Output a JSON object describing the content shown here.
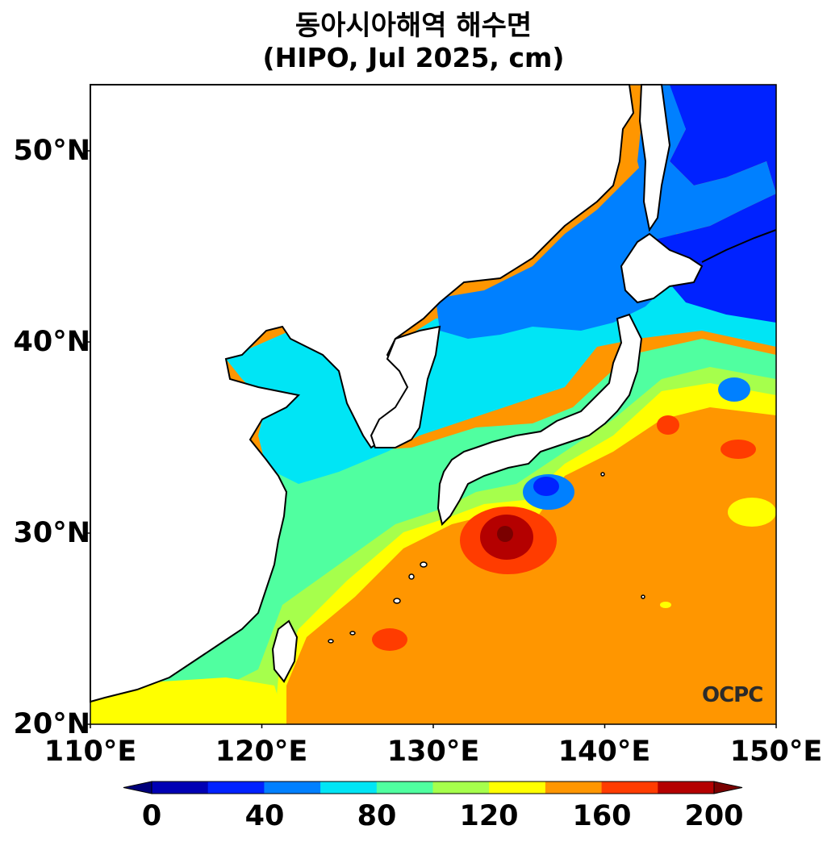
{
  "title": {
    "line1": "동아시아해역 해수면",
    "line2": "(HIPO, Jul 2025, cm)"
  },
  "map": {
    "lon_range": [
      110,
      150
    ],
    "lat_range": [
      20,
      53.5
    ],
    "x_ticks": [
      "110°E",
      "120°E",
      "130°E",
      "140°E",
      "150°E"
    ],
    "y_ticks": [
      "20°N",
      "30°N",
      "40°N",
      "50°N"
    ],
    "variable": "sea surface height",
    "units": "cm"
  },
  "colorbar": {
    "levels": [
      0,
      20,
      40,
      60,
      80,
      100,
      120,
      140,
      160,
      180,
      200
    ],
    "colors": [
      "#0000b4",
      "#0022ff",
      "#0080ff",
      "#00e5f5",
      "#50ffa0",
      "#a6ff4c",
      "#ffff00",
      "#ff9600",
      "#ff3c00",
      "#b40000"
    ],
    "under_color": "#00007a",
    "over_color": "#7a0000",
    "tick_labels": [
      "0",
      "40",
      "80",
      "120",
      "160",
      "200"
    ]
  },
  "logo": {
    "text": "OCPC"
  }
}
